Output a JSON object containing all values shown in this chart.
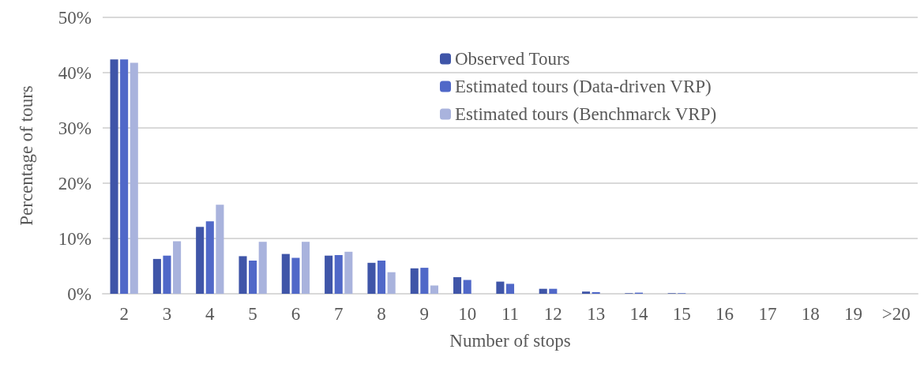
{
  "chart_data": {
    "type": "bar",
    "xlabel": "Number of stops",
    "ylabel": "Percentage of tours",
    "categories": [
      "2",
      "3",
      "4",
      "5",
      "6",
      "7",
      "8",
      "9",
      "10",
      "11",
      "12",
      "13",
      "14",
      "15",
      "16",
      "17",
      "18",
      "19",
      ">20"
    ],
    "series": [
      {
        "name": "Observed Tours",
        "color": "#3f55a8",
        "values": [
          42.4,
          6.3,
          12.1,
          6.8,
          7.2,
          6.9,
          5.6,
          4.6,
          3.0,
          2.2,
          0.9,
          0.4,
          0.1,
          0.1,
          0,
          0,
          0,
          0,
          0
        ]
      },
      {
        "name": "Estimated tours (Data-driven VRP)",
        "color": "#5068c8",
        "values": [
          42.4,
          6.9,
          13.1,
          6.0,
          6.5,
          7.0,
          6.0,
          4.7,
          2.5,
          1.8,
          0.9,
          0.3,
          0.2,
          0.1,
          0,
          0,
          0,
          0,
          0
        ]
      },
      {
        "name": "Estimated tours (Benchmarck VRP)",
        "color": "#a9b3dd",
        "values": [
          41.8,
          9.5,
          16.1,
          9.4,
          9.4,
          7.6,
          3.9,
          1.5,
          0,
          0,
          0,
          0,
          0,
          0,
          0,
          0,
          0,
          0,
          0
        ]
      }
    ],
    "ylim": [
      0,
      50
    ],
    "yticks": [
      {
        "value": 0,
        "label": "0%"
      },
      {
        "value": 10,
        "label": "10%"
      },
      {
        "value": 20,
        "label": "20%"
      },
      {
        "value": 30,
        "label": "30%"
      },
      {
        "value": 40,
        "label": "40%"
      },
      {
        "value": 50,
        "label": "50%"
      }
    ],
    "grid": "y",
    "legend": "top right"
  }
}
